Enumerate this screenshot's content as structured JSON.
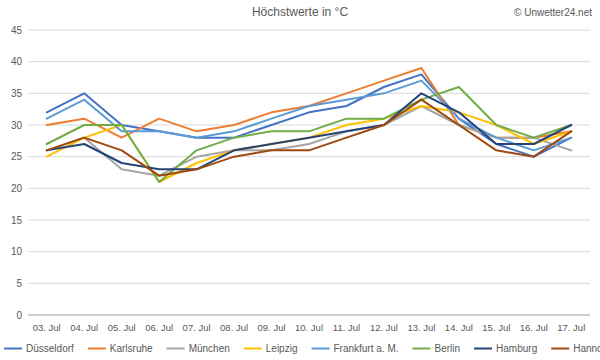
{
  "chart_data": {
    "type": "line",
    "title": "Höchstwerte in °C",
    "annotation": "© Unwetter24.net",
    "categories": [
      "03. Jul",
      "04. Jul",
      "05. Jul",
      "06. Jul",
      "07. Jul",
      "08. Jul",
      "09. Jul",
      "10. Jul",
      "11. Jul",
      "12. Jul",
      "13. Jul",
      "14. Jul",
      "15. Jul",
      "16. Jul",
      "17. Jul"
    ],
    "series": [
      {
        "name": "Düsseldorf",
        "color": "#4472c4",
        "values": [
          32,
          35,
          30,
          29,
          28,
          28,
          30,
          32,
          33,
          36,
          38,
          31,
          27,
          25,
          28
        ]
      },
      {
        "name": "Karlsruhe",
        "color": "#ed7d31",
        "values": [
          30,
          31,
          28,
          31,
          29,
          30,
          32,
          33,
          35,
          37,
          39,
          30,
          28,
          28,
          29
        ]
      },
      {
        "name": "München",
        "color": "#a5a5a5",
        "values": [
          26,
          28,
          23,
          22,
          25,
          26,
          26,
          27,
          29,
          30,
          33,
          30,
          28,
          28,
          26
        ]
      },
      {
        "name": "Leipzig",
        "color": "#ffc000",
        "values": [
          25,
          28,
          30,
          21,
          24,
          26,
          27,
          28,
          30,
          31,
          33,
          32,
          30,
          27,
          29
        ]
      },
      {
        "name": "Frankfurt a. M.",
        "color": "#5b9bd5",
        "values": [
          31,
          34,
          29,
          29,
          28,
          29,
          31,
          33,
          34,
          35,
          37,
          31,
          28,
          26,
          28
        ]
      },
      {
        "name": "Berlin",
        "color": "#70ad47",
        "values": [
          27,
          30,
          30,
          21,
          26,
          28,
          29,
          29,
          31,
          31,
          34,
          36,
          30,
          28,
          30
        ]
      },
      {
        "name": "Hamburg",
        "color": "#264478",
        "values": [
          26,
          27,
          24,
          23,
          23,
          26,
          27,
          28,
          29,
          30,
          35,
          32,
          27,
          27,
          30
        ]
      },
      {
        "name": "Hannover",
        "color": "#9e480e",
        "values": [
          26,
          28,
          26,
          22,
          23,
          25,
          26,
          26,
          28,
          30,
          34,
          30,
          26,
          25,
          29
        ]
      }
    ],
    "ylim": [
      0,
      45
    ],
    "yticks": [
      0,
      5,
      10,
      15,
      20,
      25,
      30,
      35,
      40,
      45
    ],
    "grid": true,
    "legend": "bottom"
  }
}
